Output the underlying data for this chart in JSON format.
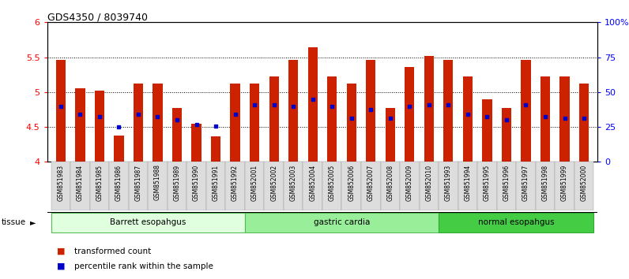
{
  "title": "GDS4350 / 8039740",
  "samples": [
    "GSM851983",
    "GSM851984",
    "GSM851985",
    "GSM851986",
    "GSM851987",
    "GSM851988",
    "GSM851989",
    "GSM851990",
    "GSM851991",
    "GSM851992",
    "GSM852001",
    "GSM852002",
    "GSM852003",
    "GSM852004",
    "GSM852005",
    "GSM852006",
    "GSM852007",
    "GSM852008",
    "GSM852009",
    "GSM852010",
    "GSM851993",
    "GSM851994",
    "GSM851995",
    "GSM851996",
    "GSM851997",
    "GSM851998",
    "GSM851999",
    "GSM852000"
  ],
  "bar_heights": [
    5.46,
    5.06,
    5.02,
    4.38,
    5.12,
    5.12,
    4.77,
    4.55,
    4.37,
    5.12,
    5.12,
    5.22,
    5.46,
    5.64,
    5.22,
    5.12,
    5.46,
    4.77,
    5.36,
    5.52,
    5.46,
    5.22,
    4.9,
    4.77,
    5.46,
    5.22,
    5.22,
    5.12
  ],
  "blue_marker_pos": [
    4.8,
    4.68,
    4.65,
    4.5,
    4.68,
    4.65,
    4.6,
    4.53,
    4.51,
    4.68,
    4.82,
    4.82,
    4.8,
    4.9,
    4.8,
    4.62,
    4.75,
    4.62,
    4.8,
    4.82,
    4.82,
    4.68,
    4.65,
    4.6,
    4.82,
    4.65,
    4.62,
    4.62
  ],
  "ylim": [
    4.0,
    6.0
  ],
  "yticks_left": [
    4.0,
    4.5,
    5.0,
    5.5,
    6.0
  ],
  "ytick_labels_left": [
    "4",
    "4.5",
    "5",
    "5.5",
    "6"
  ],
  "yticks_right": [
    0,
    25,
    50,
    75,
    100
  ],
  "ytick_labels_right": [
    "0",
    "25",
    "50",
    "75",
    "100%"
  ],
  "bar_color": "#cc2200",
  "marker_color": "#0000cc",
  "baseline": 4.0,
  "bar_width": 0.5,
  "groups": [
    {
      "label": "Barrett esopahgus",
      "start": 0,
      "end": 9,
      "color": "#dfffdf",
      "edge": "#55bb55"
    },
    {
      "label": "gastric cardia",
      "start": 10,
      "end": 19,
      "color": "#99ee99",
      "edge": "#55bb55"
    },
    {
      "label": "normal esopahgus",
      "start": 20,
      "end": 27,
      "color": "#44cc44",
      "edge": "#33aa33"
    }
  ],
  "grid_yticks": [
    4.5,
    5.0,
    5.5
  ],
  "legend_items": [
    {
      "label": "transformed count",
      "color": "#cc2200"
    },
    {
      "label": "percentile rank within the sample",
      "color": "#0000cc"
    }
  ],
  "xtick_bg": "#dddddd",
  "background_color": "#ffffff"
}
